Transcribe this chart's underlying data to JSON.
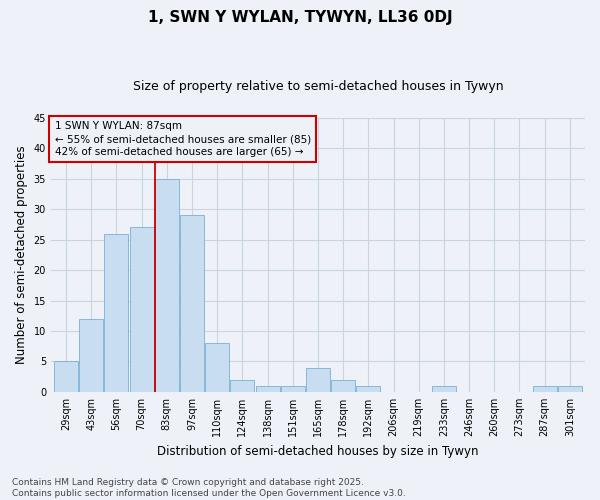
{
  "title": "1, SWN Y WYLAN, TYWYN, LL36 0DJ",
  "subtitle": "Size of property relative to semi-detached houses in Tywyn",
  "xlabel": "Distribution of semi-detached houses by size in Tywyn",
  "ylabel": "Number of semi-detached properties",
  "categories": [
    "29sqm",
    "43sqm",
    "56sqm",
    "70sqm",
    "83sqm",
    "97sqm",
    "110sqm",
    "124sqm",
    "138sqm",
    "151sqm",
    "165sqm",
    "178sqm",
    "192sqm",
    "206sqm",
    "219sqm",
    "233sqm",
    "246sqm",
    "260sqm",
    "273sqm",
    "287sqm",
    "301sqm"
  ],
  "values": [
    5,
    12,
    26,
    27,
    35,
    29,
    8,
    2,
    1,
    1,
    4,
    2,
    1,
    0,
    0,
    1,
    0,
    0,
    0,
    1,
    1
  ],
  "bar_color": "#c9ddf0",
  "bar_edge_color": "#7aafd4",
  "grid_color": "#c8d4e3",
  "background_color": "#eef2f8",
  "vline_x": 4.0,
  "vline_color": "#cc0000",
  "annotation_title": "1 SWN Y WYLAN: 87sqm",
  "annotation_line1": "← 55% of semi-detached houses are smaller (85)",
  "annotation_line2": "42% of semi-detached houses are larger (65) →",
  "annotation_box_color": "#cc0000",
  "ylim": [
    0,
    45
  ],
  "yticks": [
    0,
    5,
    10,
    15,
    20,
    25,
    30,
    35,
    40,
    45
  ],
  "footer": "Contains HM Land Registry data © Crown copyright and database right 2025.\nContains public sector information licensed under the Open Government Licence v3.0.",
  "title_fontsize": 11,
  "subtitle_fontsize": 9,
  "axis_label_fontsize": 8.5,
  "tick_fontsize": 7,
  "annotation_fontsize": 7.5,
  "footer_fontsize": 6.5
}
